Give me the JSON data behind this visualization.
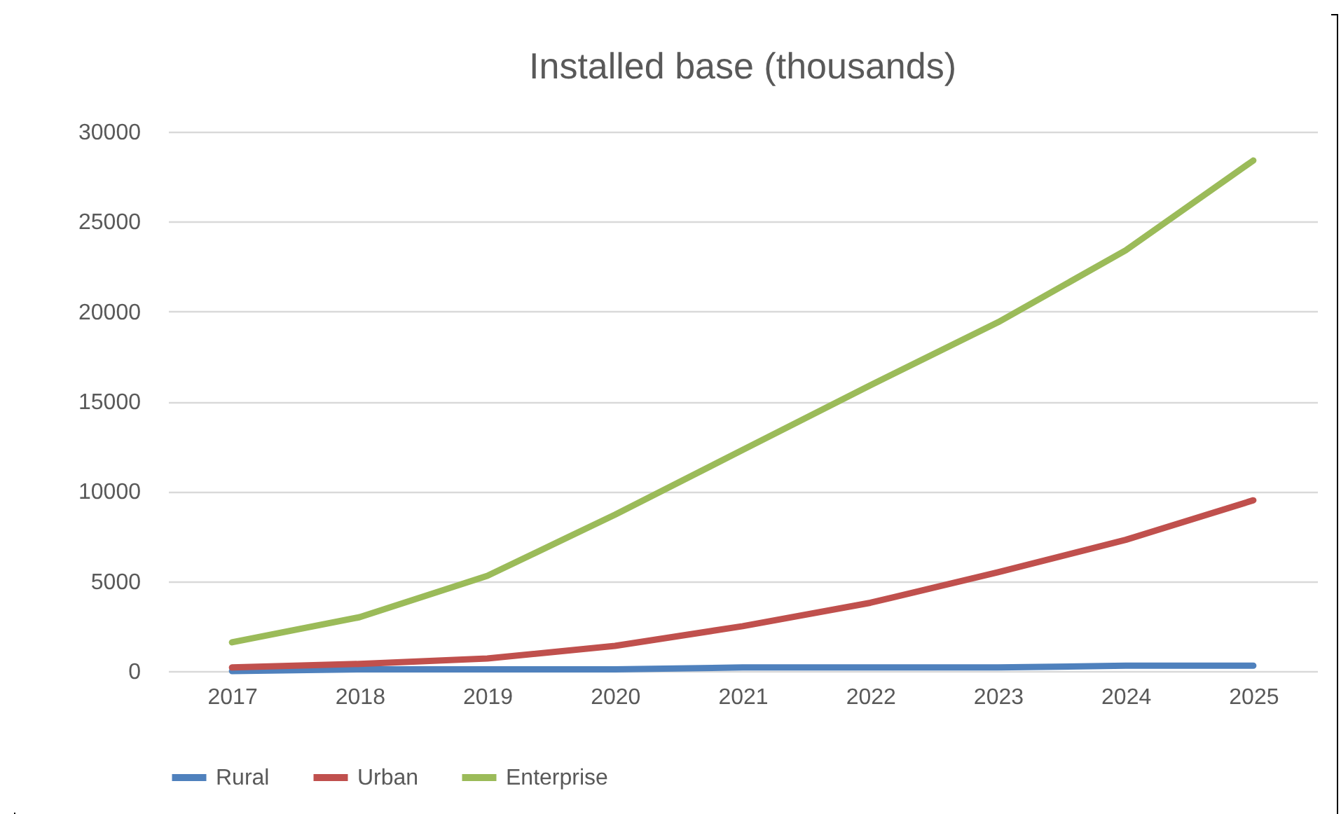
{
  "chart_data": {
    "type": "line",
    "title": "Installed base (thousands)",
    "categories": [
      "2017",
      "2018",
      "2019",
      "2020",
      "2021",
      "2022",
      "2023",
      "2024",
      "2025"
    ],
    "series": [
      {
        "name": "Rural",
        "color": "#4f81bd",
        "values": [
          0,
          100,
          100,
          100,
          200,
          200,
          200,
          300,
          300
        ]
      },
      {
        "name": "Urban",
        "color": "#c0504d",
        "values": [
          200,
          400,
          700,
          1400,
          2500,
          3800,
          5500,
          7300,
          9500
        ]
      },
      {
        "name": "Enterprise",
        "color": "#9bbb59",
        "values": [
          1600,
          3000,
          5300,
          8700,
          12300,
          15900,
          19400,
          23400,
          28400
        ]
      }
    ],
    "ylim": [
      0,
      30000
    ],
    "yticks": [
      0,
      5000,
      10000,
      15000,
      20000,
      25000,
      30000
    ],
    "grid": "y",
    "legend": "bottom",
    "marker": "none",
    "line_style": "solid"
  }
}
